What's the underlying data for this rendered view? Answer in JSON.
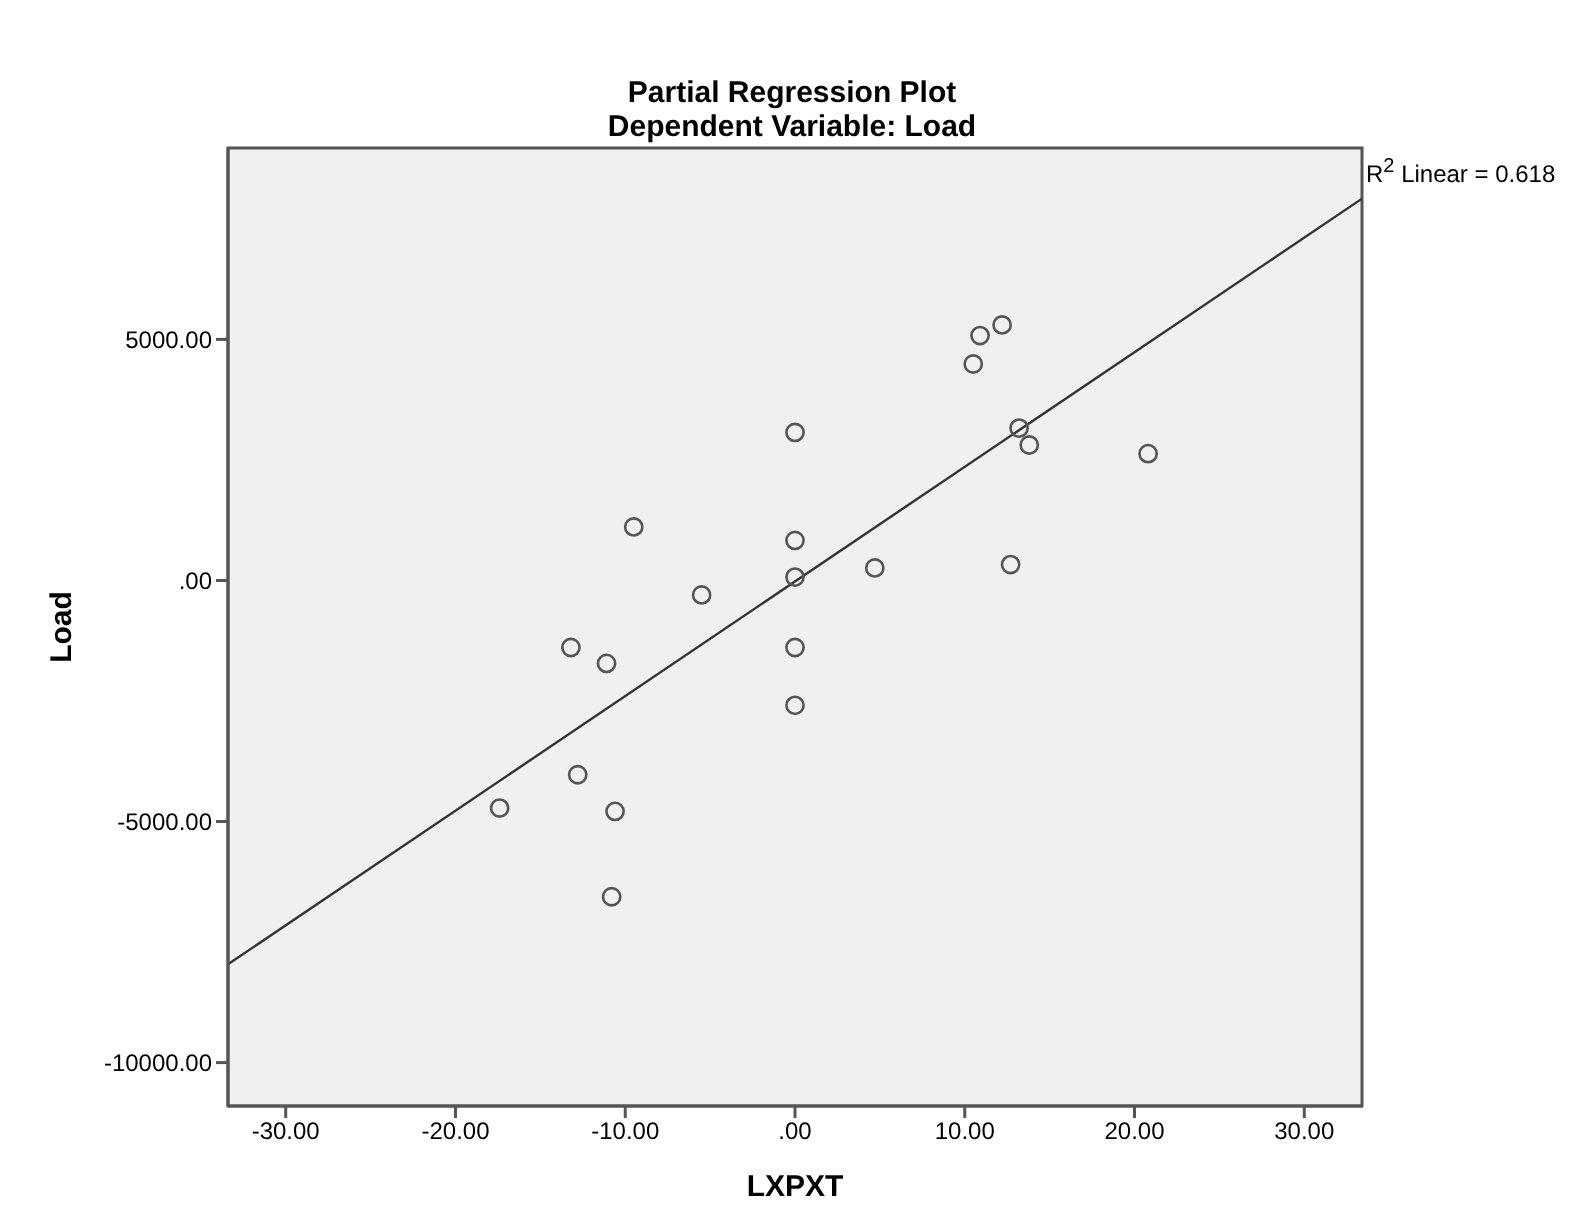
{
  "chart_data": {
    "type": "scatter",
    "title": "Partial Regression Plot",
    "subtitle": "Dependent Variable: Load",
    "xlabel": "LXPXT",
    "ylabel": "Load",
    "xlim": [
      -33.4,
      33.4
    ],
    "xticks": [
      {
        "value": -30,
        "label": "-30.00"
      },
      {
        "value": -20,
        "label": "-20.00"
      },
      {
        "value": -10,
        "label": "-10.00"
      },
      {
        "value": 0,
        "label": ".00"
      },
      {
        "value": 10,
        "label": "10.00"
      },
      {
        "value": 20,
        "label": "20.00"
      },
      {
        "value": 30,
        "label": "30.00"
      }
    ],
    "ylim": [
      -10900,
      8970
    ],
    "yticks": [
      {
        "value": -10000,
        "label": "-10000.00"
      },
      {
        "value": -5000,
        "label": "-5000.00"
      },
      {
        "value": 0,
        "label": ".00"
      },
      {
        "value": 5000,
        "label": "5000.00"
      }
    ],
    "annotations": [
      "R$^{2}$ Linear = 0.618"
    ],
    "series": [
      {
        "marker": "circle",
        "color": "#555555",
        "x": [
          0,
          -9.5,
          0,
          -5.5,
          0,
          -13.2,
          -11.1,
          10.9,
          12.2,
          10.5,
          13.2,
          13.8,
          20.8,
          4.7,
          12.7,
          0,
          0,
          -12.8,
          -17.4,
          -10.6,
          -10.8
        ],
        "values": [
          3070,
          1110,
          830,
          -300,
          70,
          -1390,
          -1720,
          5080,
          5300,
          4490,
          3160,
          2810,
          2630,
          260,
          330,
          -1390,
          -2590,
          -4030,
          -4720,
          -4790,
          -6560
        ]
      },
      {
        "type": "line",
        "color": "#333333",
        "x": [
          -33.4,
          33.4
        ],
        "values": [
          -7960,
          7920
        ]
      }
    ]
  }
}
